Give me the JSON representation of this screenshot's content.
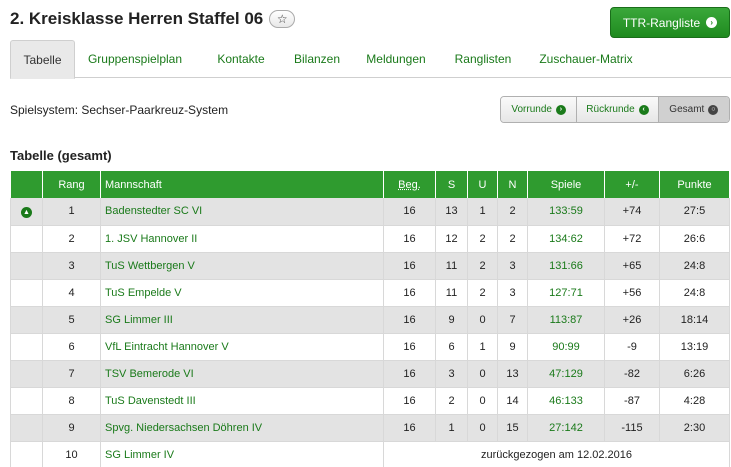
{
  "header": {
    "title": "2. Kreisklasse Herren Staffel 06",
    "star_glyph": "☆",
    "ttr_button": "TTR-Rangliste"
  },
  "tabs": [
    {
      "label": "Tabelle",
      "active": true
    },
    {
      "label": "Gruppenspielplan",
      "active": false
    },
    {
      "label": "Kontakte",
      "active": false
    },
    {
      "label": "Bilanzen",
      "active": false
    },
    {
      "label": "Meldungen",
      "active": false
    },
    {
      "label": "Ranglisten",
      "active": false
    },
    {
      "label": "Zuschauer-Matrix",
      "active": false
    }
  ],
  "system": {
    "label": "Spielsystem: Sechser-Paarkreuz-System"
  },
  "round_filter": {
    "options": [
      {
        "label": "Vorrunde",
        "arrow": "›",
        "active": false
      },
      {
        "label": "Rückrunde",
        "arrow": "‹",
        "active": false
      },
      {
        "label": "Gesamt",
        "arrow": "○",
        "active": true
      }
    ]
  },
  "table": {
    "title": "Tabelle (gesamt)",
    "headers": [
      "",
      "Rang",
      "Mannschaft",
      "Beg.",
      "S",
      "U",
      "N",
      "Spiele",
      "+/-",
      "Punkte"
    ],
    "rows": [
      {
        "icon": "promotion-icon",
        "rank": "1",
        "team": "Badenstedter SC VI",
        "beg": "16",
        "s": "13",
        "u": "1",
        "n": "2",
        "games": "133:59",
        "diff": "+74",
        "points": "27:5"
      },
      {
        "icon": "",
        "rank": "2",
        "team": "1. JSV Hannover II",
        "beg": "16",
        "s": "12",
        "u": "2",
        "n": "2",
        "games": "134:62",
        "diff": "+72",
        "points": "26:6"
      },
      {
        "icon": "",
        "rank": "3",
        "team": "TuS Wettbergen V",
        "beg": "16",
        "s": "11",
        "u": "2",
        "n": "3",
        "games": "131:66",
        "diff": "+65",
        "points": "24:8"
      },
      {
        "icon": "",
        "rank": "4",
        "team": "TuS Empelde V",
        "beg": "16",
        "s": "11",
        "u": "2",
        "n": "3",
        "games": "127:71",
        "diff": "+56",
        "points": "24:8"
      },
      {
        "icon": "",
        "rank": "5",
        "team": "SG Limmer III",
        "beg": "16",
        "s": "9",
        "u": "0",
        "n": "7",
        "games": "113:87",
        "diff": "+26",
        "points": "18:14"
      },
      {
        "icon": "",
        "rank": "6",
        "team": "VfL Eintracht Hannover V",
        "beg": "16",
        "s": "6",
        "u": "1",
        "n": "9",
        "games": "90:99",
        "diff": "-9",
        "points": "13:19"
      },
      {
        "icon": "",
        "rank": "7",
        "team": "TSV Bemerode VI",
        "beg": "16",
        "s": "3",
        "u": "0",
        "n": "13",
        "games": "47:129",
        "diff": "-82",
        "points": "6:26"
      },
      {
        "icon": "",
        "rank": "8",
        "team": "TuS Davenstedt III",
        "beg": "16",
        "s": "2",
        "u": "0",
        "n": "14",
        "games": "46:133",
        "diff": "-87",
        "points": "4:28"
      },
      {
        "icon": "",
        "rank": "9",
        "team": "Spvg. Niedersachsen Döhren IV",
        "beg": "16",
        "s": "1",
        "u": "0",
        "n": "15",
        "games": "27:142",
        "diff": "-115",
        "points": "2:30"
      }
    ],
    "withdrawn_row": {
      "rank": "10",
      "team": "SG Limmer IV",
      "note": "zurückgezogen am 12.02.2016"
    }
  },
  "colors": {
    "accent_green": "#2f9b2f",
    "link_green": "#1a7a1a",
    "row_alt": "#e3e3e3"
  }
}
